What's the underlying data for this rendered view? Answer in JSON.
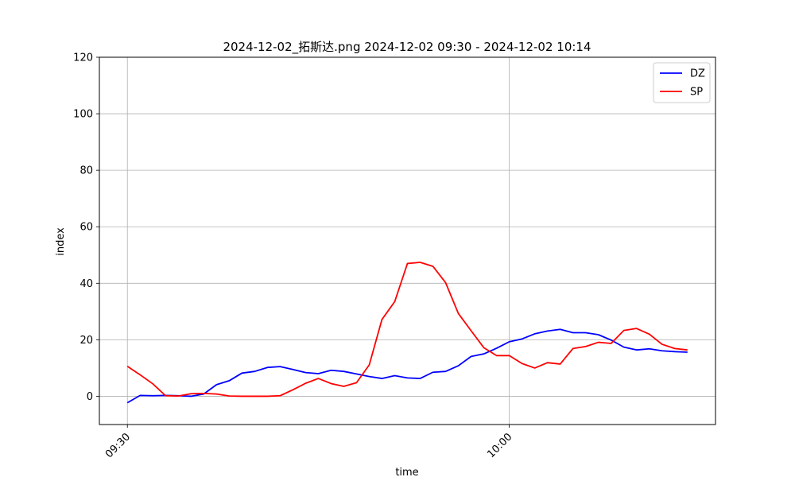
{
  "chart_data": {
    "type": "line",
    "title": "2024-12-02_拓斯达.png 2024-12-02 09:30 - 2024-12-02 10:14",
    "xlabel": "time",
    "ylabel": "index",
    "ylim": [
      -10,
      120
    ],
    "yticks": [
      0,
      20,
      40,
      60,
      80,
      100,
      120
    ],
    "xlim_minutes": [
      -2.2,
      46.2
    ],
    "xticks": [
      {
        "minute": 0,
        "label": "09:30"
      },
      {
        "minute": 30,
        "label": "10:00"
      }
    ],
    "grid": true,
    "legend_position": "top-right",
    "x_minutes": [
      0,
      1,
      2,
      3,
      4,
      5,
      6,
      7,
      8,
      9,
      10,
      11,
      12,
      13,
      14,
      15,
      16,
      17,
      18,
      19,
      20,
      21,
      22,
      23,
      24,
      25,
      26,
      27,
      28,
      29,
      30,
      31,
      32,
      33,
      34,
      35,
      36,
      37,
      38,
      39,
      40,
      41,
      42,
      43,
      44
    ],
    "series": [
      {
        "name": "DZ",
        "color": "#0000ff",
        "values": [
          -2.3,
          0.3,
          0.2,
          0.3,
          0.2,
          0.0,
          0.8,
          4.1,
          5.5,
          8.2,
          8.8,
          10.2,
          10.5,
          9.5,
          8.4,
          8.0,
          9.2,
          8.8,
          7.9,
          7.0,
          6.3,
          7.3,
          6.5,
          6.3,
          8.5,
          8.8,
          10.8,
          14.1,
          15.0,
          17.0,
          19.3,
          20.3,
          22.1,
          23.1,
          23.7,
          22.5,
          22.5,
          21.8,
          19.9,
          17.4,
          16.4,
          16.8,
          16.1,
          15.8,
          15.6
        ]
      },
      {
        "name": "SP",
        "color": "#ff0000",
        "values": [
          10.6,
          7.6,
          4.4,
          0.2,
          0.1,
          0.9,
          1.0,
          0.8,
          0.1,
          0.0,
          0.0,
          0.0,
          0.2,
          2.3,
          4.6,
          6.3,
          4.5,
          3.5,
          4.8,
          11.1,
          27.2,
          33.5,
          47.0,
          47.4,
          46.0,
          40.2,
          29.3,
          23.2,
          17.2,
          14.4,
          14.4,
          11.6,
          10.0,
          11.9,
          11.4,
          16.9,
          17.6,
          19.1,
          18.7,
          23.3,
          24.0,
          22.0,
          18.4,
          16.9,
          16.4
        ]
      }
    ]
  }
}
